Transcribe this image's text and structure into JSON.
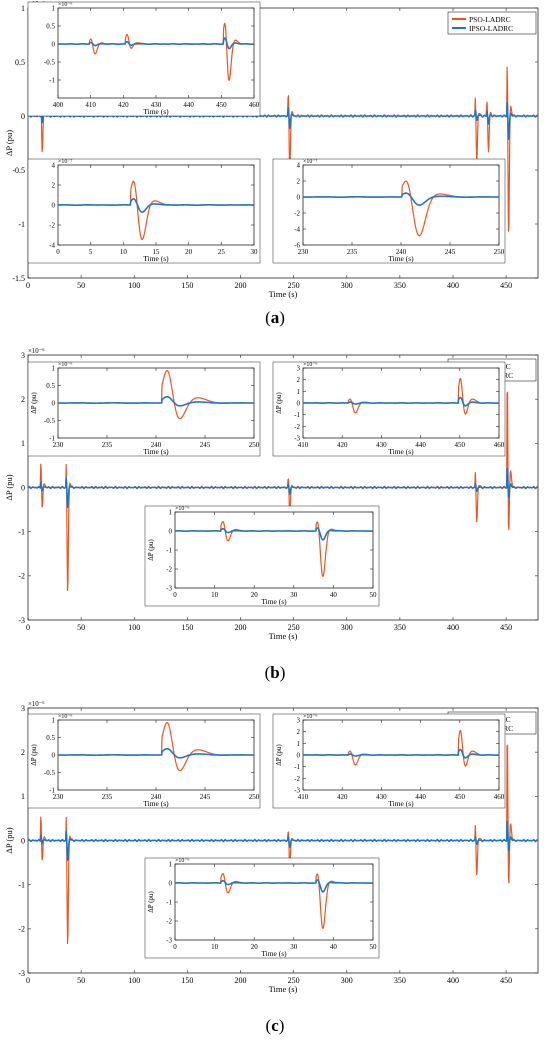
{
  "colors": {
    "pso": "#F0541E",
    "ipso": "#1F77C4"
  },
  "panel_labels": [
    {
      "open": "(",
      "letter": "a",
      "close": ")"
    },
    {
      "open": "(",
      "letter": "b",
      "close": ")"
    },
    {
      "open": "(",
      "letter": "c",
      "close": ")"
    }
  ],
  "chart_data": [
    {
      "type": "line",
      "panel": "a",
      "xlabel": "Time (s)",
      "ylabel": "ΔP (pu)",
      "xlim": [
        0,
        480
      ],
      "ylim": [
        -1.5e-06,
        1e-06
      ],
      "xticks": [
        "0",
        "50",
        "100",
        "150",
        "200",
        "250",
        "300",
        "350",
        "400",
        "450"
      ],
      "yticks": [
        "-1.5",
        "-1",
        "-0.5",
        "0",
        "0.5",
        "1"
      ],
      "exponent": "×10⁻⁶",
      "legend": [
        "PSO-LADRC",
        "IPSO-LADRC"
      ],
      "legend_position": "top-right",
      "events": [
        {
          "t": 12,
          "pso": [
            0.32,
            -0.38
          ],
          "ipso": [
            0.12,
            -0.08
          ]
        },
        {
          "t": 245,
          "pso": [
            0.3,
            -0.55
          ],
          "ipso": [
            0.1,
            -0.12
          ]
        },
        {
          "t": 421,
          "pso": [
            0.25,
            -0.45
          ],
          "ipso": [
            0.07,
            -0.05
          ]
        },
        {
          "t": 432,
          "pso": [
            0.2,
            -0.35
          ],
          "ipso": [
            0.06,
            -0.08
          ]
        },
        {
          "t": 451,
          "pso": [
            0.7,
            -1.2
          ],
          "ipso": [
            0.18,
            -0.25
          ]
        }
      ],
      "insets": [
        {
          "xlabel": "Time (s)",
          "exponent": "×10⁻⁶",
          "xlim": [
            400,
            460
          ],
          "ylim": [
            -1.5e-06,
            1e-06
          ],
          "xticks": [
            "400",
            "410",
            "420",
            "430",
            "440",
            "450",
            "460"
          ],
          "yticks": [
            "-1",
            "-0.5",
            "0",
            "0.5",
            "1"
          ],
          "events": [
            {
              "t": 410,
              "pso": [
                0.2,
                -0.3
              ],
              "ipso": [
                0.05,
                -0.05
              ]
            },
            {
              "t": 421,
              "pso": [
                0.3,
                -0.15
              ],
              "ipso": [
                0.07,
                -0.04
              ]
            },
            {
              "t": 451,
              "pso": [
                0.8,
                -1.1
              ],
              "ipso": [
                0.2,
                -0.15
              ]
            }
          ]
        },
        {
          "xlabel": "Time (s)",
          "exponent": "×10⁻⁷",
          "xlim": [
            0,
            30
          ],
          "ylim": [
            -4e-07,
            4e-07
          ],
          "xticks": [
            "0",
            "5",
            "10",
            "15",
            "20",
            "25",
            "30"
          ],
          "yticks": [
            "-4",
            "-2",
            "0",
            "2",
            "4"
          ],
          "events": [
            {
              "t": 11.5,
              "pso": [
                3.2,
                -3.8
              ],
              "ipso": [
                0.8,
                -0.8
              ]
            }
          ]
        },
        {
          "xlabel": "Time (s)",
          "exponent": "×10⁻⁷",
          "xlim": [
            230,
            250
          ],
          "ylim": [
            -6e-07,
            4e-07
          ],
          "xticks": [
            "230",
            "235",
            "240",
            "245",
            "250"
          ],
          "yticks": [
            "-6",
            "-4",
            "-2",
            "0",
            "2",
            "4"
          ],
          "events": [
            {
              "t": 240.5,
              "pso": [
                3.0,
                -5.2
              ],
              "ipso": [
                0.7,
                -1.1
              ]
            }
          ]
        }
      ]
    },
    {
      "type": "line",
      "panel": "b",
      "xlabel": "Time (s)",
      "ylabel": "ΔP (pu)",
      "xlim": [
        0,
        480
      ],
      "ylim": [
        -3e-06,
        3e-06
      ],
      "xticks": [
        "0",
        "50",
        "100",
        "150",
        "200",
        "250",
        "300",
        "350",
        "400",
        "450"
      ],
      "yticks": [
        "-3",
        "-2",
        "-1",
        "0",
        "1",
        "2",
        "3"
      ],
      "exponent": "×10⁻⁶",
      "legend": [
        "PSO-LADRC",
        "IPSO-LADRC"
      ],
      "legend_position": "top-right",
      "events": [
        {
          "t": 12,
          "pso": [
            0.7,
            -0.55
          ],
          "ipso": [
            0.15,
            -0.1
          ]
        },
        {
          "t": 36,
          "pso": [
            0.95,
            -2.5
          ],
          "ipso": [
            0.3,
            -0.5
          ]
        },
        {
          "t": 245,
          "pso": [
            0.3,
            -0.6
          ],
          "ipso": [
            0.1,
            -0.15
          ]
        },
        {
          "t": 421,
          "pso": [
            0.5,
            -0.85
          ],
          "ipso": [
            0.1,
            -0.1
          ]
        },
        {
          "t": 451,
          "pso": [
            2.7,
            -1.3
          ],
          "ipso": [
            0.55,
            -0.3
          ]
        }
      ],
      "insets": [
        {
          "xlabel": "Time (s)",
          "ylabel": "ΔP (pu)",
          "exponent": "×10⁻⁶",
          "xlim": [
            230,
            250
          ],
          "ylim": [
            -1e-06,
            1e-06
          ],
          "xticks": [
            "230",
            "235",
            "240",
            "245",
            "250"
          ],
          "yticks": [
            "-1",
            "-0.5",
            "0",
            "0.5",
            "1"
          ],
          "events": [
            {
              "t": 241,
              "pso": [
                1.05,
                -0.55
              ],
              "ipso": [
                0.2,
                -0.1
              ]
            }
          ]
        },
        {
          "xlabel": "Time (s)",
          "ylabel": "ΔP (pu)",
          "exponent": "×10⁻⁶",
          "xlim": [
            410,
            460
          ],
          "ylim": [
            -3e-06,
            3e-06
          ],
          "xticks": [
            "410",
            "420",
            "430",
            "440",
            "450",
            "460"
          ],
          "yticks": [
            "-3",
            "-2",
            "-1",
            "0",
            "1",
            "2",
            "3"
          ],
          "events": [
            {
              "t": 422,
              "pso": [
                0.5,
                -0.9
              ],
              "ipso": [
                0.1,
                -0.1
              ]
            },
            {
              "t": 450,
              "pso": [
                2.4,
                -1.2
              ],
              "ipso": [
                0.55,
                -0.3
              ]
            }
          ]
        },
        {
          "xlabel": "Time (s)",
          "ylabel": "ΔP (pu)",
          "exponent": "×10⁻⁶",
          "xlim": [
            0,
            50
          ],
          "ylim": [
            -3e-06,
            1e-06
          ],
          "xticks": [
            "0",
            "10",
            "20",
            "30",
            "40",
            "50"
          ],
          "yticks": [
            "-3",
            "-2",
            "-1",
            "0",
            "1"
          ],
          "events": [
            {
              "t": 12,
              "pso": [
                0.65,
                -0.6
              ],
              "ipso": [
                0.15,
                -0.1
              ]
            },
            {
              "t": 36,
              "pso": [
                0.9,
                -2.5
              ],
              "ipso": [
                0.25,
                -0.5
              ]
            }
          ]
        }
      ]
    },
    {
      "type": "line",
      "panel": "c",
      "xlabel": "Time (s)",
      "ylabel": "ΔP (pu)",
      "xlim": [
        0,
        480
      ],
      "ylim": [
        -3e-06,
        3e-06
      ],
      "xticks": [
        "0",
        "50",
        "100",
        "150",
        "200",
        "250",
        "300",
        "350",
        "400",
        "450"
      ],
      "yticks": [
        "-3",
        "-2",
        "-1",
        "0",
        "1",
        "2",
        "3"
      ],
      "exponent": "×10⁻⁶",
      "legend": [
        "PSO-LADRC",
        "IPSO-LADRC"
      ],
      "legend_position": "top-right",
      "events": [
        {
          "t": 12,
          "pso": [
            0.7,
            -0.55
          ],
          "ipso": [
            0.15,
            -0.1
          ]
        },
        {
          "t": 36,
          "pso": [
            0.95,
            -2.5
          ],
          "ipso": [
            0.3,
            -0.5
          ]
        },
        {
          "t": 245,
          "pso": [
            0.3,
            -0.6
          ],
          "ipso": [
            0.1,
            -0.15
          ]
        },
        {
          "t": 421,
          "pso": [
            0.5,
            -0.85
          ],
          "ipso": [
            0.1,
            -0.1
          ]
        },
        {
          "t": 451,
          "pso": [
            2.7,
            -1.3
          ],
          "ipso": [
            0.55,
            -0.3
          ]
        }
      ],
      "insets": [
        {
          "xlabel": "Time (s)",
          "ylabel": "ΔP (pu)",
          "exponent": "×10⁻⁶",
          "xlim": [
            230,
            250
          ],
          "ylim": [
            -1e-06,
            1e-06
          ],
          "xticks": [
            "230",
            "235",
            "240",
            "245",
            "250"
          ],
          "yticks": [
            "-1",
            "-0.5",
            "0",
            "0.5",
            "1"
          ],
          "events": [
            {
              "t": 241,
              "pso": [
                1.05,
                -0.55
              ],
              "ipso": [
                0.2,
                -0.1
              ]
            }
          ]
        },
        {
          "xlabel": "Time (s)",
          "ylabel": "ΔP (pu)",
          "exponent": "×10⁻⁶",
          "xlim": [
            410,
            460
          ],
          "ylim": [
            -3e-06,
            3e-06
          ],
          "xticks": [
            "410",
            "420",
            "430",
            "440",
            "450",
            "460"
          ],
          "yticks": [
            "-3",
            "-2",
            "-1",
            "0",
            "1",
            "2",
            "3"
          ],
          "events": [
            {
              "t": 422,
              "pso": [
                0.5,
                -0.9
              ],
              "ipso": [
                0.1,
                -0.1
              ]
            },
            {
              "t": 450,
              "pso": [
                2.4,
                -1.2
              ],
              "ipso": [
                0.55,
                -0.3
              ]
            }
          ]
        },
        {
          "xlabel": "Time (s)",
          "ylabel": "ΔP (pu)",
          "exponent": "×10⁻⁶",
          "xlim": [
            0,
            50
          ],
          "ylim": [
            -3e-06,
            1e-06
          ],
          "xticks": [
            "0",
            "10",
            "20",
            "30",
            "40",
            "50"
          ],
          "yticks": [
            "-3",
            "-2",
            "-1",
            "0",
            "1"
          ],
          "events": [
            {
              "t": 12,
              "pso": [
                0.65,
                -0.6
              ],
              "ipso": [
                0.15,
                -0.1
              ]
            },
            {
              "t": 36,
              "pso": [
                0.9,
                -2.5
              ],
              "ipso": [
                0.25,
                -0.5
              ]
            }
          ]
        }
      ]
    }
  ]
}
